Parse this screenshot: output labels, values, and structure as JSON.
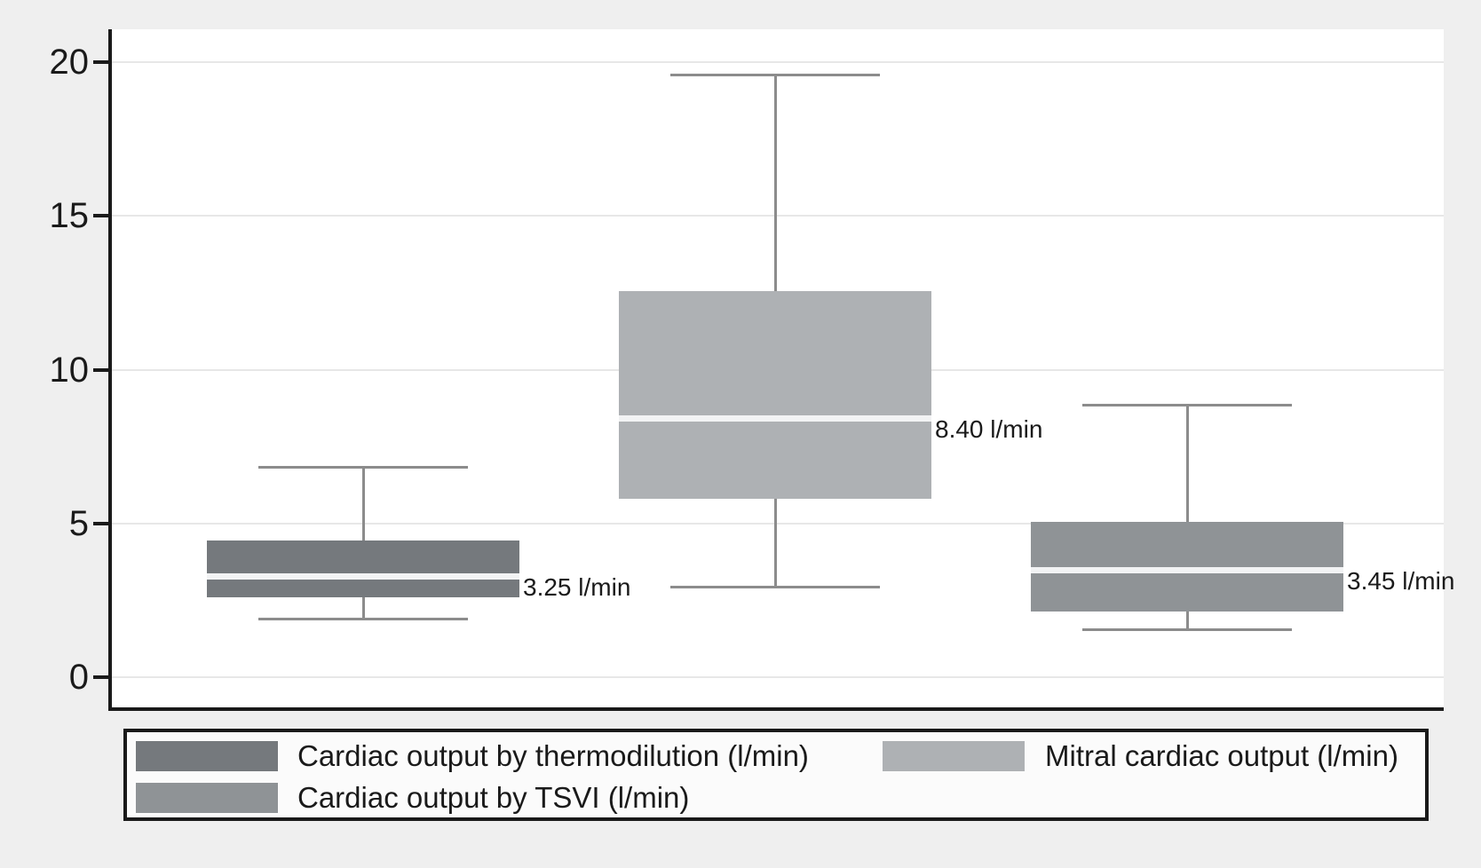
{
  "figure": {
    "background": "#efefef",
    "plot_background": "#ffffff",
    "axis_color": "#1a1a1a",
    "grid_color": "#e7e7e7",
    "whisker_color": "#8c8c8c",
    "median_stripe_color": "#f2f3f4",
    "text_color": "#1a1a1a",
    "legend_background": "#fbfbfb",
    "legend_border_color": "#1a1a1a"
  },
  "chart_data": {
    "type": "box",
    "orientation": "vertical",
    "title": "",
    "xlabel": "",
    "ylabel": "",
    "ylim": [
      0,
      20
    ],
    "yticks": [
      0,
      5,
      10,
      15,
      20
    ],
    "grid": true,
    "legend_position": "bottom",
    "series": [
      {
        "name": "Cardiac output by thermodilution (l/min)",
        "color": "#75797d",
        "whisker_low": 1.9,
        "q1": 2.6,
        "median": 3.25,
        "q3": 4.45,
        "whisker_high": 6.85,
        "median_label": "3.25 l/min"
      },
      {
        "name": "Mitral cardiac output (l/min)",
        "color": "#aeb1b4",
        "whisker_low": 2.95,
        "q1": 5.8,
        "median": 8.4,
        "q3": 12.55,
        "whisker_high": 19.6,
        "median_label": "8.40 l/min"
      },
      {
        "name": "Cardiac output by TSVI (l/min)",
        "color": "#8f9396",
        "whisker_low": 1.55,
        "q1": 2.15,
        "median": 3.45,
        "q3": 5.05,
        "whisker_high": 8.85,
        "median_label": "3.45 l/min"
      }
    ],
    "legend": [
      {
        "label": "Cardiac output by thermodilution (l/min)",
        "color": "#75797d",
        "col": 1,
        "row": 1
      },
      {
        "label": "Cardiac output by TSVI (l/min)",
        "color": "#8f9396",
        "col": 1,
        "row": 2
      },
      {
        "label": "Mitral cardiac output (l/min)",
        "color": "#aeb1b4",
        "col": 2,
        "row": 1
      }
    ]
  }
}
